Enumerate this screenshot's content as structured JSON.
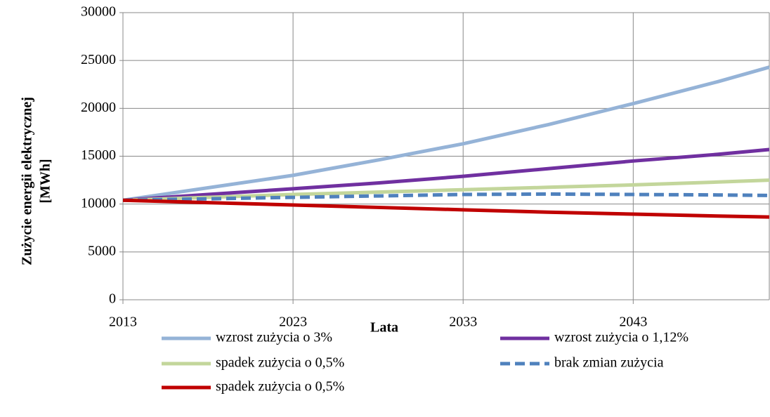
{
  "chart_data": {
    "type": "line",
    "x_label": "Lata",
    "y_label": [
      "Zużycie energii elektrycznej",
      "[MWh]"
    ],
    "x": [
      2013,
      2018,
      2023,
      2028,
      2033,
      2038,
      2043,
      2048,
      2051
    ],
    "xlim": [
      2013,
      2051
    ],
    "xticks": [
      2013,
      2023,
      2033,
      2043
    ],
    "ylim": [
      0,
      30000
    ],
    "yticks": [
      0,
      5000,
      10000,
      15000,
      20000,
      25000,
      30000
    ],
    "grid": true,
    "series": [
      {
        "name": "wzrost zużycia o 3%",
        "color": "#95b3d7",
        "values": [
          10400,
          11700,
          13000,
          14600,
          16300,
          18300,
          20500,
          22800,
          24300
        ]
      },
      {
        "name": "wzrost zużycia o 1,12%",
        "color": "#7030a0",
        "values": [
          10400,
          11000,
          11600,
          12200,
          12900,
          13700,
          14500,
          15200,
          15700
        ]
      },
      {
        "name": "spadek zużycia o 0,5%",
        "color": "#c3d69b",
        "values": [
          10400,
          10700,
          11000,
          11250,
          11500,
          11750,
          12000,
          12300,
          12500
        ]
      },
      {
        "name": "brak zmian zużycia",
        "color": "#4f81bd",
        "dashed": true,
        "values": [
          10400,
          10550,
          10700,
          10850,
          11000,
          11050,
          11000,
          10950,
          10900
        ]
      },
      {
        "name": "spadek zużycia o 0,5%",
        "color": "#c00000",
        "values": [
          10400,
          10150,
          9900,
          9650,
          9400,
          9150,
          8950,
          8750,
          8650
        ]
      }
    ]
  }
}
